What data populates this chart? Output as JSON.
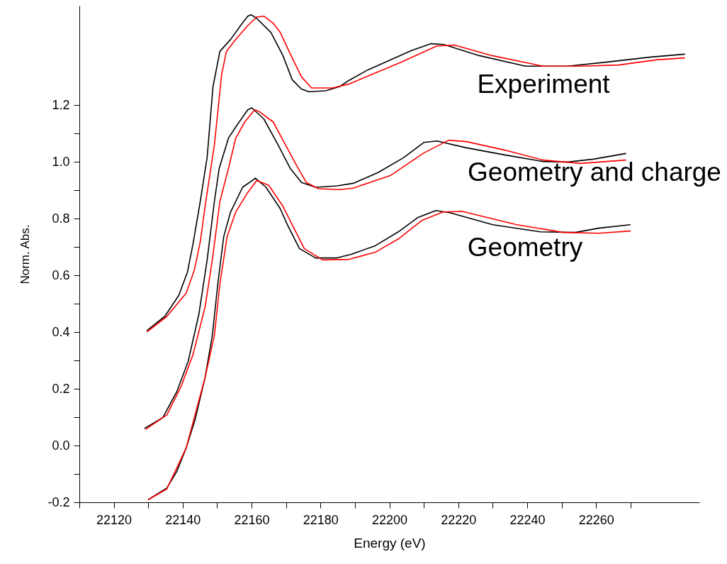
{
  "chart_data": {
    "type": "line",
    "xlabel": "Energy (eV)",
    "ylabel": "Norm. Abs.",
    "xlim": [
      22110,
      22290
    ],
    "ylim": [
      -0.2,
      1.55
    ],
    "xticks": [
      {
        "value": 22110,
        "label": null
      },
      22120,
      {
        "value": 22130,
        "label": null
      },
      22140,
      {
        "value": 22150,
        "label": null
      },
      22160,
      {
        "value": 22170,
        "label": null
      },
      22180,
      {
        "value": 22190,
        "label": null
      },
      22200,
      {
        "value": 22210,
        "label": null
      },
      22220,
      {
        "value": 22230,
        "label": null
      },
      22240,
      {
        "value": 22250,
        "label": null
      },
      22260,
      {
        "value": 22270,
        "label": null
      }
    ],
    "yticks": [
      {
        "value": -0.2,
        "label": "-0.2"
      },
      {
        "value": -0.1,
        "label": null
      },
      {
        "value": 0,
        "label": "0.0"
      },
      {
        "value": 0.1,
        "label": null
      },
      {
        "value": 0.2,
        "label": "0.2"
      },
      {
        "value": 0.3,
        "label": null
      },
      {
        "value": 0.4,
        "label": "0.4"
      },
      {
        "value": 0.5,
        "label": null
      },
      {
        "value": 0.6,
        "label": "0.6"
      },
      {
        "value": 0.7,
        "label": null
      },
      {
        "value": 0.8,
        "label": "0.8"
      },
      {
        "value": 0.9,
        "label": null
      },
      {
        "value": 1.0,
        "label": "1.0"
      },
      {
        "value": 1.1,
        "label": null
      },
      {
        "value": 1.2,
        "label": "1.2"
      }
    ],
    "grid": false,
    "marker": "none",
    "line_style": "solid",
    "series": [
      {
        "color": "#000000",
        "x": [
          22129.7,
          22134.8,
          22138.9,
          22141.4,
          22143.0,
          22145.1,
          22147.1,
          22148.8,
          22150.8,
          22153.9,
          22156.8,
          22158.9,
          22159.9,
          22161.5,
          22165.6,
          22169.1,
          22171.8,
          22174.4,
          22176.5,
          22181.5,
          22185.6,
          22188.3,
          22193.8,
          22206.3,
          22212.1,
          22215.8,
          22226.1,
          22239.5,
          22251.8,
          22262.9,
          22276.0,
          22285.7
        ],
        "values": [
          0.406,
          0.455,
          0.53,
          0.612,
          0.711,
          0.86,
          1.016,
          1.265,
          1.389,
          1.431,
          1.48,
          1.513,
          1.518,
          1.505,
          1.456,
          1.374,
          1.289,
          1.257,
          1.247,
          1.25,
          1.265,
          1.287,
          1.324,
          1.391,
          1.416,
          1.413,
          1.374,
          1.337,
          1.337,
          1.351,
          1.369,
          1.379
        ]
      },
      {
        "color": "#ff0000",
        "x": [
          22129.7,
          22135.4,
          22141.0,
          22143.4,
          22145.1,
          22146.7,
          22149.2,
          22151.3,
          22152.7,
          22155.4,
          22158.9,
          22161.5,
          22163.6,
          22166.3,
          22168.3,
          22171.2,
          22174.5,
          22177.4,
          22183.5,
          22188.3,
          22203.5,
          22213.8,
          22218.9,
          22229.8,
          22244.6,
          22255.5,
          22266.6,
          22277.5,
          22285.7
        ],
        "values": [
          0.401,
          0.455,
          0.537,
          0.619,
          0.718,
          0.86,
          1.059,
          1.307,
          1.389,
          1.431,
          1.48,
          1.51,
          1.513,
          1.488,
          1.456,
          1.381,
          1.299,
          1.26,
          1.26,
          1.274,
          1.351,
          1.408,
          1.411,
          1.374,
          1.337,
          1.337,
          1.341,
          1.359,
          1.366
        ]
      },
      {
        "color": "#000000",
        "x": [
          22129.0,
          22134.2,
          22138.3,
          22141.6,
          22144.7,
          22147.1,
          22149.2,
          22150.6,
          22153.3,
          22156.0,
          22158.9,
          22160.1,
          22163.6,
          22167.7,
          22171.2,
          22174.5,
          22178.6,
          22184.8,
          22189.5,
          22196.7,
          22204.1,
          22210.0,
          22213.8,
          22222.4,
          22233.5,
          22244.6,
          22251.8,
          22259.2,
          22268.6
        ],
        "values": [
          0.061,
          0.098,
          0.19,
          0.297,
          0.463,
          0.654,
          0.86,
          0.977,
          1.084,
          1.133,
          1.183,
          1.19,
          1.15,
          1.059,
          0.977,
          0.927,
          0.91,
          0.915,
          0.924,
          0.962,
          1.014,
          1.068,
          1.073,
          1.049,
          1.024,
          1.001,
          0.999,
          1.009,
          1.029
        ]
      },
      {
        "color": "#ff0000",
        "x": [
          22129.3,
          22135.4,
          22139.5,
          22143.0,
          22146.5,
          22148.6,
          22150.8,
          22153.3,
          22155.4,
          22158.0,
          22160.9,
          22162.1,
          22166.3,
          22169.1,
          22173.2,
          22175.9,
          22179.4,
          22185.6,
          22189.5,
          22200.4,
          22210.0,
          22217.2,
          22222.4,
          22233.5,
          22244.6,
          22255.5,
          22268.6
        ],
        "values": [
          0.058,
          0.108,
          0.207,
          0.321,
          0.488,
          0.654,
          0.86,
          0.977,
          1.083,
          1.14,
          1.183,
          1.178,
          1.14,
          1.076,
          0.984,
          0.927,
          0.905,
          0.902,
          0.907,
          0.952,
          1.031,
          1.076,
          1.071,
          1.041,
          1.006,
          0.994,
          1.006
        ]
      },
      {
        "color": "#000000",
        "x": [
          22130.1,
          22135.4,
          22138.3,
          22141.0,
          22143.6,
          22146.5,
          22148.6,
          22150.2,
          22151.9,
          22153.9,
          22157.4,
          22161.1,
          22164.2,
          22168.3,
          22170.4,
          22173.9,
          22178.6,
          22184.8,
          22188.9,
          22195.9,
          22202.6,
          22208.2,
          22213.5,
          22217.7,
          22230.0,
          22243.8,
          22254.0,
          22260.8,
          22269.9
        ],
        "values": [
          -0.19,
          -0.15,
          -0.091,
          -0.009,
          0.091,
          0.24,
          0.388,
          0.57,
          0.736,
          0.823,
          0.91,
          0.942,
          0.91,
          0.835,
          0.778,
          0.694,
          0.661,
          0.661,
          0.674,
          0.704,
          0.753,
          0.803,
          0.828,
          0.82,
          0.778,
          0.753,
          0.751,
          0.766,
          0.778
        ]
      },
      {
        "color": "#ff0000",
        "x": [
          22130.1,
          22135.4,
          22141.0,
          22146.5,
          22149.2,
          22150.8,
          22152.9,
          22155.4,
          22158.9,
          22161.5,
          22165.0,
          22169.1,
          22171.8,
          22175.3,
          22180.6,
          22188.3,
          22195.9,
          22202.6,
          22209.4,
          22215.6,
          22221.2,
          22237.0,
          22250.5,
          22260.8,
          22269.9
        ],
        "values": [
          -0.19,
          -0.153,
          -0.009,
          0.24,
          0.388,
          0.57,
          0.736,
          0.823,
          0.892,
          0.934,
          0.917,
          0.843,
          0.778,
          0.694,
          0.654,
          0.656,
          0.681,
          0.728,
          0.793,
          0.823,
          0.825,
          0.778,
          0.751,
          0.748,
          0.756
        ]
      }
    ],
    "annotations": [
      "Experiment",
      "Geometry and charge",
      "Geometry"
    ]
  }
}
